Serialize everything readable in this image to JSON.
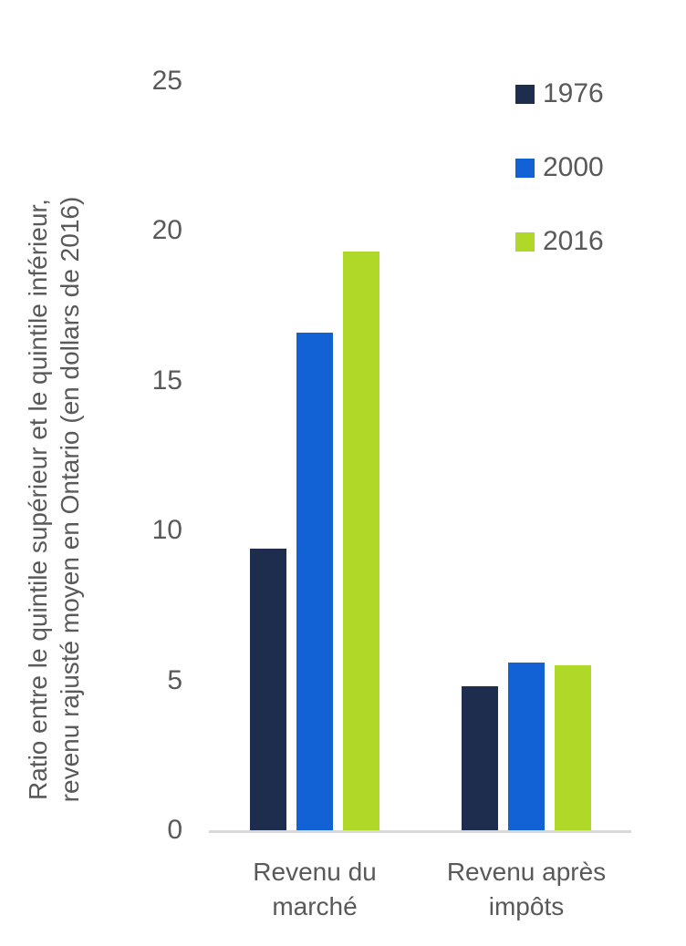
{
  "chart_data": {
    "type": "bar",
    "title": "",
    "categories": [
      "Revenu du marché",
      "Revenu après impôts"
    ],
    "categories_lines": [
      [
        "Revenu du",
        "marché"
      ],
      [
        "Revenu après",
        "impôts"
      ]
    ],
    "series": [
      {
        "name": "1976",
        "color": "#1e2c4d",
        "values": [
          9.4,
          4.8
        ]
      },
      {
        "name": "2000",
        "color": "#1262d6",
        "values": [
          16.6,
          5.6
        ]
      },
      {
        "name": "2016",
        "color": "#b0d829",
        "values": [
          19.3,
          5.5
        ]
      }
    ],
    "ylabel_lines": [
      "Ratio entre le quintile supérieur et le quintile inférieur,",
      "revenu rajusté moyen en Ontario (en dollars de 2016)"
    ],
    "xlabel": "",
    "yticks": [
      0,
      5,
      10,
      15,
      20,
      25
    ],
    "ylim": [
      0,
      25
    ],
    "grid": false,
    "legend_position": "top-right"
  },
  "colors": {
    "text": "#595959",
    "axis_line": "#d9d9d9",
    "background": "#ffffff"
  }
}
